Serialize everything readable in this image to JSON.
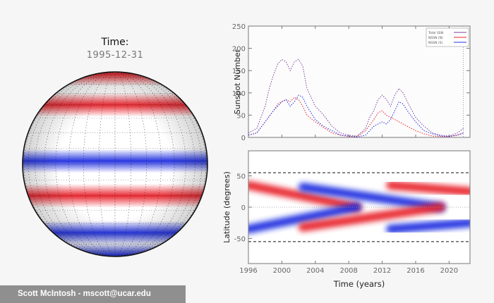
{
  "time_panel": {
    "label": "Time:",
    "value": "1995-12-31"
  },
  "credit": "Scott McIntosh - mscott@ucar.edu",
  "colors": {
    "north": "#e8212a",
    "south": "#1f2fe0",
    "total": "#7b3fa0",
    "background": "#f7f6f6"
  },
  "chart_data": [
    {
      "type": "line",
      "title": "",
      "xlabel": "",
      "ylabel": "Sunspot Number",
      "ylim": [
        0,
        250
      ],
      "xlim": [
        1996,
        2022.5
      ],
      "yticks": [
        0,
        50,
        100,
        150,
        200,
        250
      ],
      "legend": {
        "placement": "top-right",
        "entries": [
          "Total SSN",
          "NSSN (N)",
          "NSSN (S)"
        ]
      },
      "cursor_time": 2021.7,
      "series": [
        {
          "name": "Total SSN",
          "color": "#7b3fa0",
          "x": [
            1996,
            1997,
            1998,
            1998.5,
            1999,
            1999.5,
            2000,
            2000.5,
            2001,
            2001.5,
            2002,
            2002.5,
            2003,
            2004,
            2005,
            2006,
            2007,
            2008,
            2009,
            2010,
            2010.5,
            2011,
            2011.5,
            2012,
            2012.5,
            2013,
            2013.5,
            2014,
            2014.5,
            2015,
            2016,
            2017,
            2018,
            2019,
            2020,
            2021,
            2021.7
          ],
          "values": [
            10,
            20,
            70,
            110,
            140,
            165,
            175,
            170,
            150,
            170,
            175,
            160,
            110,
            70,
            50,
            25,
            10,
            5,
            3,
            20,
            45,
            60,
            85,
            95,
            85,
            70,
            95,
            110,
            100,
            80,
            45,
            25,
            10,
            5,
            3,
            10,
            20
          ]
        },
        {
          "name": "NSSN (N)",
          "color": "#e8212a",
          "x": [
            1996,
            1997,
            1998,
            1999,
            1999.5,
            2000,
            2000.5,
            2001,
            2001.5,
            2002,
            2002.5,
            2003,
            2004,
            2005,
            2006,
            2007,
            2008,
            2009,
            2010,
            2011,
            2011.5,
            2012,
            2012.5,
            2013,
            2013.5,
            2014,
            2015,
            2016,
            2017,
            2018,
            2019,
            2020,
            2021,
            2021.7
          ],
          "values": [
            5,
            10,
            35,
            60,
            75,
            80,
            85,
            80,
            90,
            85,
            70,
            50,
            35,
            22,
            10,
            5,
            2,
            2,
            15,
            40,
            55,
            60,
            50,
            45,
            40,
            35,
            25,
            15,
            8,
            3,
            2,
            2,
            5,
            10
          ]
        },
        {
          "name": "NSSN (S)",
          "color": "#1f2fe0",
          "x": [
            1996,
            1997,
            1998,
            1999,
            2000,
            2000.5,
            2001,
            2001.5,
            2002,
            2002.5,
            2003,
            2004,
            2005,
            2006,
            2007,
            2008,
            2009,
            2010,
            2011,
            2012,
            2012.5,
            2013,
            2013.5,
            2014,
            2014.5,
            2015,
            2016,
            2017,
            2018,
            2019,
            2020,
            2021,
            2021.7
          ],
          "values": [
            5,
            10,
            35,
            60,
            80,
            85,
            70,
            80,
            95,
            90,
            70,
            40,
            25,
            15,
            5,
            3,
            1,
            5,
            25,
            35,
            30,
            40,
            60,
            80,
            75,
            60,
            35,
            15,
            8,
            3,
            2,
            5,
            10
          ]
        }
      ]
    },
    {
      "type": "heatmap",
      "title": "",
      "xlabel": "Time (years)",
      "ylabel": "Latitude (degrees)",
      "xlim": [
        1996,
        2022.5
      ],
      "ylim": [
        -90,
        90
      ],
      "xticks": [
        1996,
        2000,
        2004,
        2008,
        2012,
        2016,
        2020
      ],
      "yticks": [
        -50,
        0,
        50
      ],
      "reference_lines": [
        55,
        -55
      ],
      "bands": [
        {
          "polarity": "north",
          "start": [
            1996,
            90
          ],
          "end": [
            2001.5,
            90
          ],
          "width": 30
        },
        {
          "polarity": "south",
          "start": [
            2001.5,
            90
          ],
          "end": [
            2012.5,
            90
          ],
          "width": 30
        },
        {
          "polarity": "north",
          "start": [
            2012.5,
            90
          ],
          "end": [
            2022.5,
            90
          ],
          "width": 30
        },
        {
          "polarity": "south",
          "start": [
            1996,
            -90
          ],
          "end": [
            2001.5,
            -90
          ],
          "width": 30
        },
        {
          "polarity": "north",
          "start": [
            2001.5,
            -90
          ],
          "end": [
            2012.5,
            -90
          ],
          "width": 30
        },
        {
          "polarity": "south",
          "start": [
            2012.5,
            -90
          ],
          "end": [
            2022.5,
            -90
          ],
          "width": 30
        },
        {
          "polarity": "north",
          "start": [
            1996,
            35
          ],
          "end": [
            2009,
            0
          ],
          "width": 14
        },
        {
          "polarity": "south",
          "start": [
            2002.5,
            32
          ],
          "end": [
            2019,
            0
          ],
          "width": 14
        },
        {
          "polarity": "north",
          "start": [
            2013,
            35
          ],
          "end": [
            2022.5,
            25
          ],
          "width": 14
        },
        {
          "polarity": "south",
          "start": [
            1996,
            -35
          ],
          "end": [
            2009,
            0
          ],
          "width": 14
        },
        {
          "polarity": "north",
          "start": [
            2002.5,
            -32
          ],
          "end": [
            2019,
            0
          ],
          "width": 14
        },
        {
          "polarity": "south",
          "start": [
            2013,
            -35
          ],
          "end": [
            2022.5,
            -25
          ],
          "width": 14
        }
      ]
    }
  ],
  "globe": {
    "bands": [
      {
        "lat": 78,
        "polarity": "north"
      },
      {
        "lat": 40,
        "polarity": "north"
      },
      {
        "lat": 2,
        "polarity": "south"
      },
      {
        "lat": -20,
        "polarity": "north"
      },
      {
        "lat": -48,
        "polarity": "south"
      },
      {
        "lat": -80,
        "polarity": "south"
      }
    ]
  }
}
